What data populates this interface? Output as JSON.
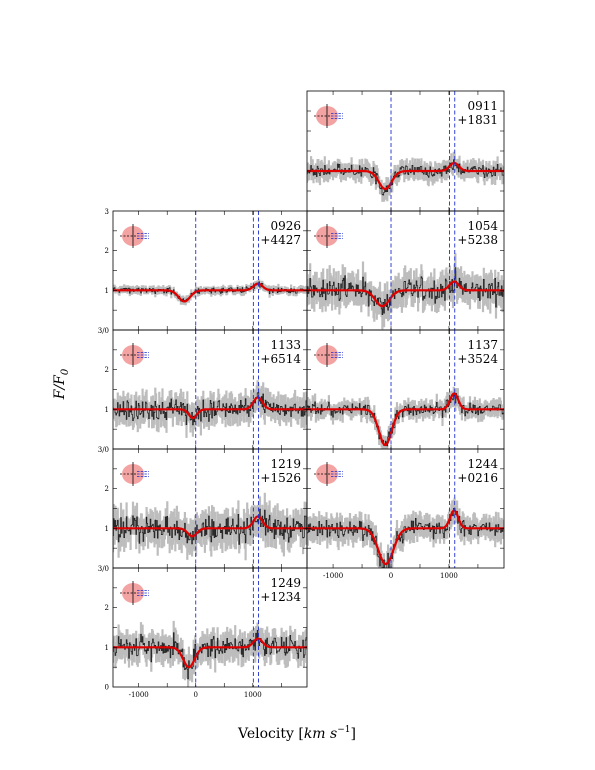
{
  "figure": {
    "ylabel": "F/F_0",
    "ylabel_main": "F/F",
    "ylabel_sub": "0",
    "xlabel_main": "Velocity [",
    "xlabel_unit": "km s",
    "xlabel_exp": "−1",
    "xlabel_close": "]"
  },
  "colors": {
    "data": "#1a1a1a",
    "error": "#bdbdbd",
    "model": "#e00000",
    "vline": "#1f2fd0",
    "icon_fill": "#f4a3a3"
  },
  "chart_data": [
    {
      "type": "line",
      "id": "0911",
      "name_top": "0911",
      "name_bottom": "+1831",
      "xlim": [
        -1450,
        1950
      ],
      "ylim": [
        0,
        3
      ],
      "dip_center": -100,
      "dip_depth": 0.45,
      "dip_sigma": 110,
      "bump_center": 1090,
      "bump_amp": 0.2,
      "bump_sigma": 80,
      "noise": 0.16,
      "vlines": [
        0,
        1010,
        1100
      ],
      "xticks": [],
      "yticks": []
    },
    {
      "type": "line",
      "id": "0926",
      "name_top": "0926",
      "name_bottom": "+4427",
      "xlim": [
        -1450,
        1950
      ],
      "ylim": [
        0,
        3
      ],
      "dip_center": -200,
      "dip_depth": 0.28,
      "dip_sigma": 100,
      "bump_center": 1090,
      "bump_amp": 0.17,
      "bump_sigma": 80,
      "noise": 0.07,
      "vlines": [
        0,
        1010,
        1100
      ],
      "xticks": [],
      "yticks": [
        "1",
        "2",
        "3"
      ]
    },
    {
      "type": "line",
      "id": "1054",
      "name_top": "1054",
      "name_bottom": "+5238",
      "xlim": [
        -1450,
        1950
      ],
      "ylim": [
        0,
        3
      ],
      "dip_center": -150,
      "dip_depth": 0.4,
      "dip_sigma": 120,
      "bump_center": 1090,
      "bump_amp": 0.22,
      "bump_sigma": 80,
      "noise": 0.28,
      "vlines": [
        0,
        1010,
        1100
      ],
      "xticks": [],
      "yticks": []
    },
    {
      "type": "line",
      "id": "1133",
      "name_top": "1133",
      "name_bottom": "+6514",
      "xlim": [
        -1450,
        1950
      ],
      "ylim": [
        0,
        3
      ],
      "dip_center": -50,
      "dip_depth": 0.22,
      "dip_sigma": 70,
      "bump_center": 1090,
      "bump_amp": 0.3,
      "bump_sigma": 80,
      "noise": 0.24,
      "vlines": [
        0,
        1010,
        1100
      ],
      "xticks": [],
      "yticks": [
        "1",
        "2",
        "3/0"
      ]
    },
    {
      "type": "line",
      "id": "1137",
      "name_top": "1137",
      "name_bottom": "+3524",
      "xlim": [
        -1450,
        1950
      ],
      "ylim": [
        0,
        3
      ],
      "dip_center": -100,
      "dip_depth": 0.9,
      "dip_sigma": 110,
      "bump_center": 1090,
      "bump_amp": 0.4,
      "bump_sigma": 70,
      "noise": 0.15,
      "vlines": [
        0,
        1010,
        1100
      ],
      "xticks": [],
      "yticks": []
    },
    {
      "type": "line",
      "id": "1219",
      "name_top": "1219",
      "name_bottom": "+1526",
      "xlim": [
        -1450,
        1950
      ],
      "ylim": [
        0,
        3
      ],
      "dip_center": -60,
      "dip_depth": 0.2,
      "dip_sigma": 80,
      "bump_center": 1090,
      "bump_amp": 0.3,
      "bump_sigma": 80,
      "noise": 0.3,
      "vlines": [
        0,
        1010,
        1100
      ],
      "xticks": [],
      "yticks": [
        "1",
        "2",
        "3/0"
      ]
    },
    {
      "type": "line",
      "id": "1244",
      "name_top": "1244",
      "name_bottom": "+0216",
      "xlim": [
        -1450,
        1950
      ],
      "ylim": [
        0,
        3
      ],
      "dip_center": -90,
      "dip_depth": 0.9,
      "dip_sigma": 130,
      "bump_center": 1090,
      "bump_amp": 0.45,
      "bump_sigma": 70,
      "noise": 0.22,
      "vlines": [
        0,
        1010,
        1100
      ],
      "xticks": [
        "-1000",
        "0",
        "1000"
      ],
      "yticks": []
    },
    {
      "type": "line",
      "id": "1249",
      "name_top": "1249",
      "name_bottom": "+1234",
      "xlim": [
        -1450,
        1950
      ],
      "ylim": [
        0,
        3
      ],
      "dip_center": -120,
      "dip_depth": 0.5,
      "dip_sigma": 100,
      "bump_center": 1090,
      "bump_amp": 0.22,
      "bump_sigma": 80,
      "noise": 0.25,
      "vlines": [
        0,
        1010,
        1100
      ],
      "xticks": [
        "-1000",
        "0",
        "1000"
      ],
      "yticks": [
        "0",
        "1",
        "2",
        "3/0"
      ]
    }
  ]
}
